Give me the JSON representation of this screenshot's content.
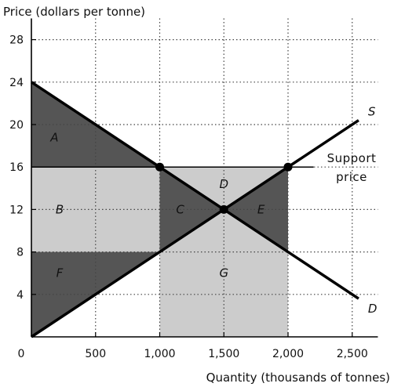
{
  "chart_data": {
    "type": "line",
    "ylabel": "Price (dollars per tonne)",
    "xlabel": "Quantity (thousands of tonnes)",
    "origin_label": "0",
    "xlim": [
      0,
      2700
    ],
    "ylim": [
      0,
      30
    ],
    "x_ticks": [
      500,
      1000,
      1500,
      2000,
      2500
    ],
    "x_tick_labels": [
      "500",
      "1,000",
      "1,500",
      "2,000",
      "2,500"
    ],
    "y_ticks": [
      4,
      8,
      12,
      16,
      20,
      24,
      28
    ],
    "y_tick_labels": [
      "4",
      "8",
      "12",
      "16",
      "20",
      "24",
      "28"
    ],
    "grid": "dotted",
    "series": [
      {
        "name": "S",
        "points": [
          [
            0,
            0
          ],
          [
            2550,
            20.4
          ]
        ]
      },
      {
        "name": "D",
        "points": [
          [
            0,
            24
          ],
          [
            2550,
            3.6
          ]
        ]
      }
    ],
    "support_price": {
      "value": 16,
      "x_end": 2200,
      "label_line1": "Support",
      "label_line2": "price"
    },
    "points": [
      [
        1000,
        16
      ],
      [
        2000,
        16
      ],
      [
        1500,
        12
      ]
    ],
    "regions": [
      {
        "name": "A",
        "shade": "dark",
        "label_at": [
          180,
          18.8
        ],
        "polygon": [
          [
            0,
            24
          ],
          [
            1000,
            16
          ],
          [
            0,
            16
          ]
        ]
      },
      {
        "name": "B",
        "shade": "light",
        "label_at": [
          220,
          12
        ],
        "polygon": [
          [
            0,
            16
          ],
          [
            1000,
            16
          ],
          [
            1000,
            8
          ],
          [
            0,
            8
          ]
        ]
      },
      {
        "name": "F",
        "shade": "dark",
        "label_at": [
          220,
          6
        ],
        "polygon": [
          [
            0,
            8
          ],
          [
            1000,
            8
          ],
          [
            0,
            0
          ]
        ]
      },
      {
        "name": "C",
        "shade": "dark",
        "label_at": [
          1160,
          12
        ],
        "polygon": [
          [
            1000,
            16
          ],
          [
            1500,
            12
          ],
          [
            1000,
            8
          ]
        ]
      },
      {
        "name": "E",
        "shade": "dark",
        "label_at": [
          1790,
          12
        ],
        "polygon": [
          [
            1500,
            12
          ],
          [
            2000,
            16
          ],
          [
            2000,
            8
          ]
        ]
      },
      {
        "name": "D",
        "shade": "light",
        "label_at": [
          1500,
          14.4
        ],
        "polygon": [
          [
            1000,
            16
          ],
          [
            2000,
            16
          ],
          [
            1500,
            12
          ]
        ]
      },
      {
        "name": "G",
        "shade": "light",
        "label_at": [
          1500,
          6
        ],
        "polygon": [
          [
            1500,
            12
          ],
          [
            2000,
            8
          ],
          [
            2000,
            0
          ],
          [
            1000,
            0
          ],
          [
            1000,
            8
          ]
        ]
      }
    ],
    "colors": {
      "dark": "#555555",
      "light": "#cccccc",
      "line": "#000000",
      "grid": "#444444"
    }
  }
}
